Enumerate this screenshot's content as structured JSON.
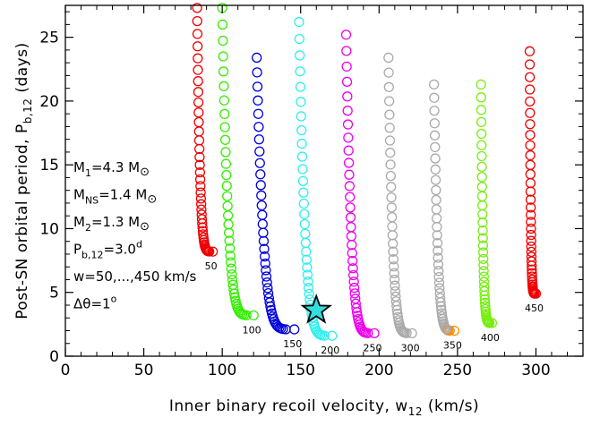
{
  "chart_data": {
    "type": "scatter",
    "xlabel": "Inner binary recoil velocity, w",
    "xlabel_sub": "12",
    "xlabel_unit": " (km/s)",
    "ylabel": "Post-SN orbital period, P",
    "ylabel_sub": "b,12",
    "ylabel_unit": " (days)",
    "xlim": [
      0,
      330
    ],
    "ylim": [
      0,
      27.5
    ],
    "xticks": [
      0,
      50,
      100,
      150,
      200,
      250,
      300
    ],
    "yticks": [
      0,
      5,
      10,
      15,
      20,
      25
    ],
    "grid": false,
    "marker": "open-circle",
    "annotations": [
      {
        "main": "M",
        "sub": "1",
        "rest": "=4.3 M",
        "sym": "⊙"
      },
      {
        "main": "M",
        "sub": "NS",
        "rest": "=1.4 M",
        "sym": "⊙"
      },
      {
        "main": "M",
        "sub": "2",
        "rest": "=1.3 M",
        "sym": "⊙"
      },
      {
        "main": "P",
        "sub": "b,12",
        "rest": "=3.0",
        "sup": "d"
      },
      {
        "main": "w=50,...,450 km/s"
      },
      {
        "main": "Δθ=1",
        "sup": "o"
      }
    ],
    "highlight": {
      "x": 160,
      "y": 3.6,
      "marker": "star",
      "color": "#33dddd"
    },
    "series": [
      {
        "label": "50",
        "color": "#ee0000",
        "end_color": "#ee0000",
        "x_top": 84,
        "x_bottom": 94,
        "y_top": 27.3,
        "y_bottom": 8.2
      },
      {
        "label": "100",
        "color": "#33ee00",
        "end_color": "#33ee00",
        "x_top": 100,
        "x_bottom": 120,
        "y_top": 27.3,
        "y_bottom": 3.2
      },
      {
        "label": "150",
        "color": "#0000dd",
        "end_color": "#0000dd",
        "x_top": 122,
        "x_bottom": 146,
        "y_top": 23.4,
        "y_bottom": 2.1
      },
      {
        "label": "200",
        "color": "#33eeee",
        "end_color": "#33eeee",
        "x_top": 149,
        "x_bottom": 170,
        "y_top": 26.2,
        "y_bottom": 1.6
      },
      {
        "label": "250",
        "color": "#ee00ee",
        "end_color": "#ee00ee",
        "x_top": 179,
        "x_bottom": 197,
        "y_top": 25.2,
        "y_bottom": 1.8
      },
      {
        "label": "300",
        "color": "#aaaaaa",
        "end_color": "#aaaaaa",
        "x_top": 206,
        "x_bottom": 221,
        "y_top": 23.4,
        "y_bottom": 1.8
      },
      {
        "label": "350",
        "color": "#aaaaaa",
        "end_color": "#ff8800",
        "x_top": 235,
        "x_bottom": 248,
        "y_top": 21.3,
        "y_bottom": 2.0
      },
      {
        "label": "400",
        "color": "#77ee11",
        "end_color": "#77ee11",
        "x_top": 265,
        "x_bottom": 272,
        "y_top": 21.3,
        "y_bottom": 2.6
      },
      {
        "label": "450",
        "color": "#ee0000",
        "end_color": "#ee0000",
        "x_top": 296,
        "x_bottom": 300,
        "y_top": 23.9,
        "y_bottom": 4.9
      }
    ]
  }
}
